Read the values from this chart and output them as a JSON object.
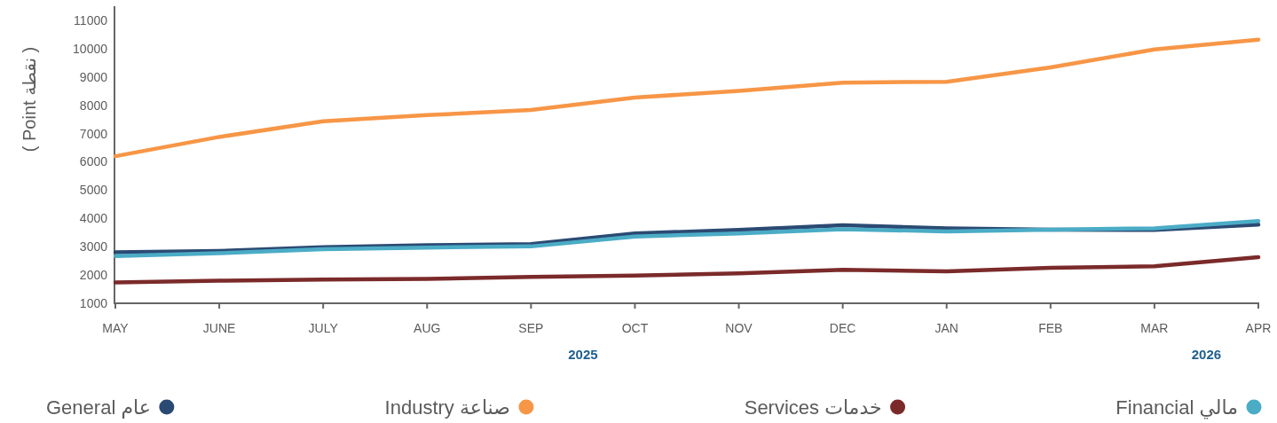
{
  "chart_data": {
    "type": "line",
    "ylabel": "( Point نقطة )",
    "categories": [
      "MAY",
      "JUNE",
      "JULY",
      "AUG",
      "SEP",
      "OCT",
      "NOV",
      "DEC",
      "JAN",
      "FEB",
      "MAR",
      "APR"
    ],
    "series": [
      {
        "name": "General عام",
        "color": "#2b4a73",
        "values": [
          2800,
          2850,
          2980,
          3050,
          3090,
          3470,
          3590,
          3760,
          3650,
          3600,
          3590,
          3780
        ]
      },
      {
        "name": "Industry صناعة",
        "color": "#f79646",
        "values": [
          6200,
          6880,
          7430,
          7650,
          7830,
          8270,
          8510,
          8800,
          8830,
          9340,
          9970,
          10320
        ]
      },
      {
        "name": "Services خدمات",
        "color": "#7b2a2a",
        "values": [
          1740,
          1800,
          1840,
          1860,
          1930,
          1980,
          2060,
          2180,
          2130,
          2250,
          2310,
          2630
        ]
      },
      {
        "name": "Financial مالي",
        "color": "#4bacc6",
        "values": [
          2670,
          2770,
          2910,
          2970,
          3010,
          3360,
          3470,
          3620,
          3540,
          3600,
          3650,
          3910
        ]
      }
    ],
    "ylim": [
      1000,
      11500
    ],
    "yticks": [
      1000,
      2000,
      3000,
      4000,
      5000,
      6000,
      7000,
      8000,
      9000,
      10000,
      11000
    ],
    "grid": false,
    "legend": "bottom",
    "annotations": [
      "2025",
      "2026"
    ]
  }
}
